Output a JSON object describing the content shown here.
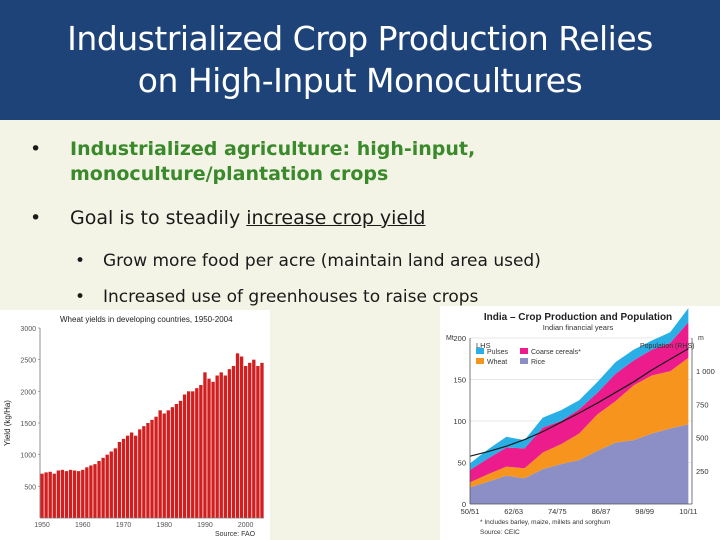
{
  "slide": {
    "title_line1": "Industrialized Crop Production Relies",
    "title_line2": "on High-Input Monocultures",
    "bullets": [
      {
        "marker": "•",
        "text": "Industrialized agriculture: high-input, monoculture/plantation crops"
      },
      {
        "marker": "•",
        "text_before": "Goal is to steadily ",
        "text_underlined": "increase crop yield"
      }
    ],
    "sub_bullets": [
      {
        "marker": "•",
        "text": "Grow more food per acre (maintain land area used)"
      },
      {
        "marker": "•",
        "text": "Increased use of greenhouses to raise crops"
      }
    ],
    "colors": {
      "title_bg": "#1e4378",
      "bullet_green": "#3a8a2c",
      "background": "#f3f3e6"
    }
  },
  "chart_data": [
    {
      "type": "bar",
      "title": "Wheat yields in developing countries, 1950-2004",
      "ylabel": "Yield (kg/Ha)",
      "xlabel": "",
      "source": "Source:  FAO",
      "ylim": [
        0,
        3000
      ],
      "yticks": [
        "3000",
        "2500",
        "2000",
        "1500",
        "1000",
        "500"
      ],
      "ytick_values": [
        3000,
        2500,
        2000,
        1500,
        1000,
        500
      ],
      "xticks": [
        "1950",
        "1960",
        "1970",
        "1980",
        "1990",
        "2000"
      ],
      "xtick_values": [
        1950,
        1960,
        1970,
        1980,
        1990,
        2000
      ],
      "years": [
        1950,
        1951,
        1952,
        1953,
        1954,
        1955,
        1956,
        1957,
        1958,
        1959,
        1960,
        1961,
        1962,
        1963,
        1964,
        1965,
        1966,
        1967,
        1968,
        1969,
        1970,
        1971,
        1972,
        1973,
        1974,
        1975,
        1976,
        1977,
        1978,
        1979,
        1980,
        1981,
        1982,
        1983,
        1984,
        1985,
        1986,
        1987,
        1988,
        1989,
        1990,
        1991,
        1992,
        1993,
        1994,
        1995,
        1996,
        1997,
        1998,
        1999,
        2000,
        2001,
        2002,
        2003,
        2004
      ],
      "values": [
        700,
        720,
        730,
        700,
        750,
        760,
        740,
        760,
        750,
        740,
        760,
        800,
        830,
        850,
        900,
        950,
        1000,
        1050,
        1100,
        1200,
        1250,
        1300,
        1350,
        1300,
        1400,
        1450,
        1500,
        1550,
        1600,
        1700,
        1650,
        1700,
        1750,
        1800,
        1850,
        1950,
        2000,
        2000,
        2050,
        2100,
        2300,
        2200,
        2150,
        2250,
        2300,
        2250,
        2350,
        2400,
        2600,
        2550,
        2400,
        2450,
        2500,
        2400,
        2450
      ],
      "bar_color": "#d21e1e"
    },
    {
      "type": "area",
      "title": "India – Crop Production and Population",
      "subtitle": "Indian financial years",
      "left_axis_label": "Mt",
      "left_axis_title": "LHS",
      "right_axis_label": "m",
      "right_axis_title": "Population (RHS)",
      "ylim_left": [
        0,
        200
      ],
      "ylim_right": [
        0,
        1250
      ],
      "yticks_left": [
        "200",
        "150",
        "100",
        "50",
        "0"
      ],
      "yticks_left_values": [
        200,
        150,
        100,
        50,
        0
      ],
      "yticks_right": [
        "1 000",
        "750",
        "500",
        "250"
      ],
      "yticks_right_values": [
        1000,
        750,
        500,
        250
      ],
      "xticks": [
        "50/51",
        "62/63",
        "74/75",
        "86/87",
        "98/99",
        "10/11"
      ],
      "xtick_values": [
        1950,
        1962,
        1974,
        1986,
        1998,
        2010
      ],
      "legend": [
        "Pulses",
        "Coarse cereals*",
        "Wheat",
        "Rice"
      ],
      "legend_colors": [
        "#29aee6",
        "#ec1c8c",
        "#f7941d",
        "#8b8fc6"
      ],
      "footnote": "*    Includes barley, maize, millets and sorghum",
      "source": "Source: CEIC",
      "years": [
        1950,
        1955,
        1960,
        1965,
        1970,
        1975,
        1980,
        1985,
        1990,
        1995,
        2000,
        2005,
        2010
      ],
      "rice": [
        20,
        27,
        34,
        31,
        42,
        48,
        53,
        64,
        74,
        77,
        85,
        91,
        96
      ],
      "wheat": [
        6,
        9,
        11,
        12,
        20,
        24,
        32,
        44,
        50,
        66,
        70,
        69,
        80
      ],
      "coarse": [
        15,
        19,
        23,
        24,
        30,
        28,
        29,
        26,
        33,
        30,
        31,
        34,
        43
      ],
      "pulses": [
        8,
        11,
        13,
        10,
        12,
        13,
        11,
        13,
        14,
        13,
        11,
        13,
        17
      ],
      "population": [
        360,
        395,
        435,
        485,
        545,
        615,
        685,
        760,
        840,
        920,
        1010,
        1090,
        1170
      ],
      "population_color": "#1a1a1a"
    }
  ]
}
